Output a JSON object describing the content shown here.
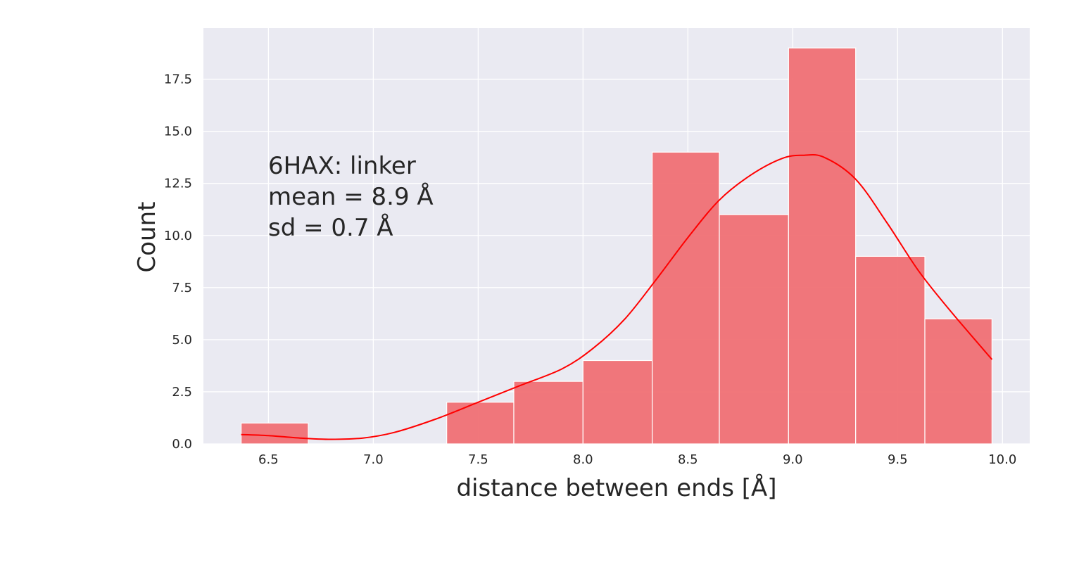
{
  "chart_data": {
    "type": "bar",
    "subtype": "histogram with kde",
    "xlabel": "distance between ends [Å]",
    "ylabel": "Count",
    "xlim": [
      6.19,
      10.13
    ],
    "ylim": [
      0,
      19.95
    ],
    "xticks": [
      6.5,
      7.0,
      7.5,
      8.0,
      8.5,
      9.0,
      9.5,
      10.0
    ],
    "xtick_labels": [
      "6.5",
      "7.0",
      "7.5",
      "8.0",
      "8.5",
      "9.0",
      "9.5",
      "10.0"
    ],
    "yticks": [
      0.0,
      2.5,
      5.0,
      7.5,
      10.0,
      12.5,
      15.0,
      17.5
    ],
    "ytick_labels": [
      "0.0",
      "2.5",
      "5.0",
      "7.5",
      "10.0",
      "12.5",
      "15.0",
      "17.5"
    ],
    "bins": [
      {
        "x0": 6.37,
        "x1": 6.69,
        "count": 1
      },
      {
        "x0": 6.69,
        "x1": 7.02,
        "count": 0
      },
      {
        "x0": 7.02,
        "x1": 7.35,
        "count": 0
      },
      {
        "x0": 7.35,
        "x1": 7.67,
        "count": 2
      },
      {
        "x0": 7.67,
        "x1": 8.0,
        "count": 3
      },
      {
        "x0": 8.0,
        "x1": 8.33,
        "count": 4
      },
      {
        "x0": 8.33,
        "x1": 8.65,
        "count": 14
      },
      {
        "x0": 8.65,
        "x1": 8.98,
        "count": 11
      },
      {
        "x0": 8.98,
        "x1": 9.3,
        "count": 19
      },
      {
        "x0": 9.3,
        "x1": 9.63,
        "count": 9
      },
      {
        "x0": 9.63,
        "x1": 9.95,
        "count": 6
      }
    ],
    "kde": {
      "name": "kde",
      "x": [
        6.37,
        6.5,
        6.65,
        6.8,
        6.95,
        7.1,
        7.3,
        7.5,
        7.7,
        7.9,
        8.05,
        8.2,
        8.35,
        8.5,
        8.65,
        8.8,
        8.95,
        9.05,
        9.15,
        9.3,
        9.45,
        9.6,
        9.75,
        9.95
      ],
      "y": [
        0.45,
        0.4,
        0.28,
        0.22,
        0.28,
        0.55,
        1.2,
        2.0,
        2.8,
        3.6,
        4.6,
        6.0,
        7.9,
        9.9,
        11.7,
        12.9,
        13.7,
        13.85,
        13.75,
        12.7,
        10.6,
        8.3,
        6.4,
        4.05
      ]
    },
    "colors": {
      "bar": "#f07074",
      "kde": "#ff0000",
      "background": "#eaeaf2",
      "grid": "#ffffff"
    },
    "annotation": {
      "line1": "6HAX: linker",
      "line2": "mean = 8.9 Å",
      "line3": "sd = 0.7 Å"
    },
    "grid": true,
    "legend": "none"
  }
}
